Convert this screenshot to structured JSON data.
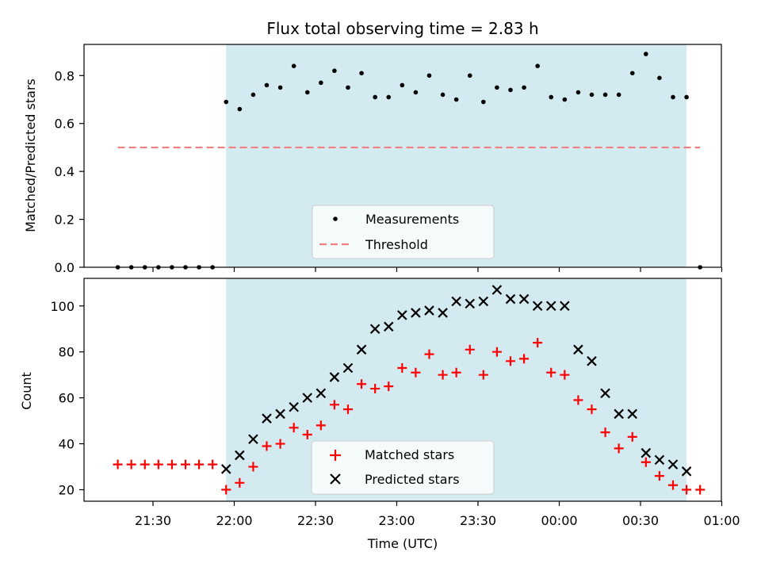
{
  "chart_data": [
    {
      "type": "scatter",
      "title": "Flux total observing time = 2.83 h",
      "xlabel": "",
      "ylabel": "Matched/Predicted stars",
      "ylim": [
        0,
        0.93
      ],
      "yticks": [
        0.0,
        0.2,
        0.4,
        0.6,
        0.8
      ],
      "ytick_labels": [
        "0.0",
        "0.2",
        "0.4",
        "0.6",
        "0.8"
      ],
      "shaded_interval": [
        "21:57",
        "00:47"
      ],
      "shade_color": "#d3eaf0",
      "legend_position": "bottom-center",
      "series": [
        {
          "name": "Measurements",
          "marker": "dot",
          "color": "#000000",
          "points": [
            [
              "21:17",
              0.0
            ],
            [
              "21:22",
              0.0
            ],
            [
              "21:27",
              0.0
            ],
            [
              "21:32",
              0.0
            ],
            [
              "21:37",
              0.0
            ],
            [
              "21:42",
              0.0
            ],
            [
              "21:47",
              0.0
            ],
            [
              "21:52",
              0.0
            ],
            [
              "21:57",
              0.69
            ],
            [
              "22:02",
              0.66
            ],
            [
              "22:07",
              0.72
            ],
            [
              "22:12",
              0.76
            ],
            [
              "22:17",
              0.75
            ],
            [
              "22:22",
              0.84
            ],
            [
              "22:27",
              0.73
            ],
            [
              "22:32",
              0.77
            ],
            [
              "22:37",
              0.82
            ],
            [
              "22:42",
              0.75
            ],
            [
              "22:47",
              0.81
            ],
            [
              "22:52",
              0.71
            ],
            [
              "22:57",
              0.71
            ],
            [
              "23:02",
              0.76
            ],
            [
              "23:07",
              0.73
            ],
            [
              "23:12",
              0.8
            ],
            [
              "23:17",
              0.72
            ],
            [
              "23:22",
              0.7
            ],
            [
              "23:27",
              0.8
            ],
            [
              "23:32",
              0.69
            ],
            [
              "23:37",
              0.75
            ],
            [
              "23:42",
              0.74
            ],
            [
              "23:47",
              0.75
            ],
            [
              "23:52",
              0.84
            ],
            [
              "23:57",
              0.71
            ],
            [
              "00:02",
              0.7
            ],
            [
              "00:07",
              0.73
            ],
            [
              "00:12",
              0.72
            ],
            [
              "00:17",
              0.72
            ],
            [
              "00:22",
              0.72
            ],
            [
              "00:27",
              0.81
            ],
            [
              "00:32",
              0.89
            ],
            [
              "00:37",
              0.79
            ],
            [
              "00:42",
              0.71
            ],
            [
              "00:47",
              0.71
            ],
            [
              "00:52",
              0.0
            ]
          ]
        },
        {
          "name": "Threshold",
          "type": "line",
          "style": "dashed",
          "color": "#f08080",
          "points": [
            [
              "21:17",
              0.5
            ],
            [
              "00:52",
              0.5
            ]
          ]
        }
      ]
    },
    {
      "type": "scatter",
      "title": "",
      "xlabel": "Time (UTC)",
      "ylabel": "Count",
      "ylim": [
        15,
        112
      ],
      "yticks": [
        20,
        40,
        60,
        80,
        100
      ],
      "ytick_labels": [
        "20",
        "40",
        "60",
        "80",
        "100"
      ],
      "xticks": [
        "21:30",
        "22:00",
        "22:30",
        "23:00",
        "23:30",
        "00:00",
        "00:30",
        "01:00"
      ],
      "xlim": [
        "21:05",
        "01:00"
      ],
      "shaded_interval": [
        "21:57",
        "00:47"
      ],
      "shade_color": "#d3eaf0",
      "legend_position": "bottom-center",
      "series": [
        {
          "name": "Matched stars",
          "marker": "plus",
          "color": "#ff0000",
          "points": [
            [
              "21:17",
              31
            ],
            [
              "21:22",
              31
            ],
            [
              "21:27",
              31
            ],
            [
              "21:32",
              31
            ],
            [
              "21:37",
              31
            ],
            [
              "21:42",
              31
            ],
            [
              "21:47",
              31
            ],
            [
              "21:52",
              31
            ],
            [
              "21:57",
              20
            ],
            [
              "22:02",
              23
            ],
            [
              "22:07",
              30
            ],
            [
              "22:12",
              39
            ],
            [
              "22:17",
              40
            ],
            [
              "22:22",
              47
            ],
            [
              "22:27",
              44
            ],
            [
              "22:32",
              48
            ],
            [
              "22:37",
              57
            ],
            [
              "22:42",
              55
            ],
            [
              "22:47",
              66
            ],
            [
              "22:52",
              64
            ],
            [
              "22:57",
              65
            ],
            [
              "23:02",
              73
            ],
            [
              "23:07",
              71
            ],
            [
              "23:12",
              79
            ],
            [
              "23:17",
              70
            ],
            [
              "23:22",
              71
            ],
            [
              "23:27",
              81
            ],
            [
              "23:32",
              70
            ],
            [
              "23:37",
              80
            ],
            [
              "23:42",
              76
            ],
            [
              "23:47",
              77
            ],
            [
              "23:52",
              84
            ],
            [
              "23:57",
              71
            ],
            [
              "00:02",
              70
            ],
            [
              "00:07",
              59
            ],
            [
              "00:12",
              55
            ],
            [
              "00:17",
              45
            ],
            [
              "00:22",
              38
            ],
            [
              "00:27",
              43
            ],
            [
              "00:32",
              32
            ],
            [
              "00:37",
              26
            ],
            [
              "00:42",
              22
            ],
            [
              "00:47",
              20
            ],
            [
              "00:52",
              20
            ]
          ]
        },
        {
          "name": "Predicted stars",
          "marker": "x",
          "color": "#000000",
          "points": [
            [
              "21:57",
              29
            ],
            [
              "22:02",
              35
            ],
            [
              "22:07",
              42
            ],
            [
              "22:12",
              51
            ],
            [
              "22:17",
              53
            ],
            [
              "22:22",
              56
            ],
            [
              "22:27",
              60
            ],
            [
              "22:32",
              62
            ],
            [
              "22:37",
              69
            ],
            [
              "22:42",
              73
            ],
            [
              "22:47",
              81
            ],
            [
              "22:52",
              90
            ],
            [
              "22:57",
              91
            ],
            [
              "23:02",
              96
            ],
            [
              "23:07",
              97
            ],
            [
              "23:12",
              98
            ],
            [
              "23:17",
              97
            ],
            [
              "23:22",
              102
            ],
            [
              "23:27",
              101
            ],
            [
              "23:32",
              102
            ],
            [
              "23:37",
              107
            ],
            [
              "23:42",
              103
            ],
            [
              "23:47",
              103
            ],
            [
              "23:52",
              100
            ],
            [
              "23:57",
              100
            ],
            [
              "00:02",
              100
            ],
            [
              "00:07",
              81
            ],
            [
              "00:12",
              76
            ],
            [
              "00:17",
              62
            ],
            [
              "00:22",
              53
            ],
            [
              "00:27",
              53
            ],
            [
              "00:32",
              36
            ],
            [
              "00:37",
              33
            ],
            [
              "00:42",
              31
            ],
            [
              "00:47",
              28
            ]
          ]
        }
      ]
    }
  ]
}
